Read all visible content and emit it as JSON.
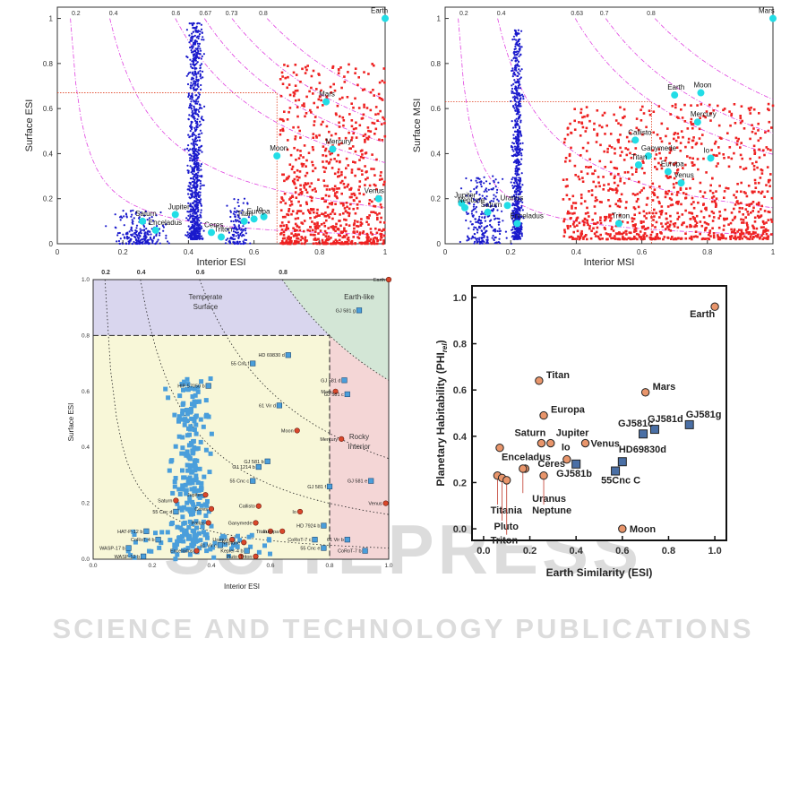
{
  "watermark": {
    "line1": "SCITEPRESS",
    "line2": "SCIENCE AND TECHNOLOGY PUBLICATIONS"
  },
  "chart_data": [
    {
      "id": "p1",
      "type": "scatter",
      "xlabel": "Interior ESI",
      "ylabel": "Surface ESI",
      "xlim": [
        0,
        1
      ],
      "ylim": [
        0,
        1.05
      ],
      "xticks": [
        "0",
        "0.2",
        "0.4",
        "0.6",
        "0.8",
        "1"
      ],
      "yticks": [
        "0",
        "0.2",
        "0.4",
        "0.6",
        "0.8",
        "1"
      ],
      "curve_labels": [
        "0.2",
        "0.4",
        "0.6",
        "0.67",
        "0.73",
        "0.8"
      ],
      "colors": {
        "blue": "#1a1acc",
        "red": "#ee2222",
        "cyan": "#22dde6",
        "curve": "#e040e0"
      },
      "points": [
        {
          "name": "Earth",
          "x": 1.0,
          "y": 1.0
        },
        {
          "name": "Mars",
          "x": 0.82,
          "y": 0.63
        },
        {
          "name": "Mercury",
          "x": 0.84,
          "y": 0.42
        },
        {
          "name": "Moon",
          "x": 0.67,
          "y": 0.39
        },
        {
          "name": "Venus",
          "x": 0.98,
          "y": 0.2
        },
        {
          "name": "Io",
          "x": 0.63,
          "y": 0.12
        },
        {
          "name": "Europa",
          "x": 0.6,
          "y": 0.11
        },
        {
          "name": "Titan",
          "x": 0.57,
          "y": 0.1
        },
        {
          "name": "Jupiter",
          "x": 0.36,
          "y": 0.13
        },
        {
          "name": "Saturn",
          "x": 0.26,
          "y": 0.1
        },
        {
          "name": "Enceladus",
          "x": 0.3,
          "y": 0.06
        },
        {
          "name": "Triton",
          "x": 0.5,
          "y": 0.03
        },
        {
          "name": "Ceres",
          "x": 0.47,
          "y": 0.05
        }
      ]
    },
    {
      "id": "p2",
      "type": "scatter",
      "xlabel": "Interior MSI",
      "ylabel": "Surface MSI",
      "xlim": [
        0,
        1
      ],
      "ylim": [
        0,
        1.05
      ],
      "xticks": [
        "0",
        "0.2",
        "0.4",
        "0.6",
        "0.8",
        "1"
      ],
      "yticks": [
        "0",
        "0.2",
        "0.4",
        "0.6",
        "0.8",
        "1"
      ],
      "curve_labels": [
        "0.2",
        "0.4",
        "0.63",
        "0.7",
        "0.8"
      ],
      "colors": {
        "blue": "#1a1acc",
        "red": "#ee2222",
        "cyan": "#22dde6",
        "curve": "#e040e0"
      },
      "points": [
        {
          "name": "Mars",
          "x": 1.0,
          "y": 1.0
        },
        {
          "name": "Earth",
          "x": 0.7,
          "y": 0.66
        },
        {
          "name": "Moon",
          "x": 0.78,
          "y": 0.67
        },
        {
          "name": "Mercury",
          "x": 0.77,
          "y": 0.54
        },
        {
          "name": "Callisto",
          "x": 0.58,
          "y": 0.46
        },
        {
          "name": "Ganymede",
          "x": 0.62,
          "y": 0.39
        },
        {
          "name": "Io",
          "x": 0.81,
          "y": 0.38
        },
        {
          "name": "Titan",
          "x": 0.59,
          "y": 0.35
        },
        {
          "name": "Europa",
          "x": 0.68,
          "y": 0.32
        },
        {
          "name": "Venus",
          "x": 0.72,
          "y": 0.27
        },
        {
          "name": "Jupiter",
          "x": 0.05,
          "y": 0.18
        },
        {
          "name": "Saturn",
          "x": 0.13,
          "y": 0.14
        },
        {
          "name": "Neptune",
          "x": 0.06,
          "y": 0.16
        },
        {
          "name": "Uranus",
          "x": 0.19,
          "y": 0.17
        },
        {
          "name": "Enceladus",
          "x": 0.22,
          "y": 0.09
        },
        {
          "name": "Triton",
          "x": 0.53,
          "y": 0.09
        }
      ]
    },
    {
      "id": "p3",
      "type": "scatter",
      "xlabel": "Interior ESI",
      "ylabel": "Surface ESI",
      "xlim": [
        0,
        1
      ],
      "ylim": [
        0,
        1
      ],
      "xticks": [
        "0.0",
        "0.2",
        "0.4",
        "0.6",
        "0.8",
        "1.0"
      ],
      "yticks": [
        "0.0",
        "0.2",
        "0.4",
        "0.6",
        "0.8",
        "1.0"
      ],
      "curve_labels": [
        "0.2",
        "0.4",
        "0.6",
        "0.8"
      ],
      "regions": [
        "Temperate Surface",
        "Earth-like",
        "Rocky Interior"
      ],
      "colors": {
        "blue": "#4a9edb",
        "planet": "#d9472b",
        "temperate": "#d9d6ee",
        "earthlike": "#d3e6d6",
        "rocky": "#f4d6d6",
        "inner": "#f8f7d8"
      },
      "labeled_points": [
        {
          "name": "Earth",
          "x": 1.0,
          "y": 1.0,
          "kind": "planet"
        },
        {
          "name": "GJ 581 g",
          "x": 0.9,
          "y": 0.89,
          "kind": "exo"
        },
        {
          "name": "HD 69830 d",
          "x": 0.66,
          "y": 0.73,
          "kind": "exo"
        },
        {
          "name": "55 Cnc f",
          "x": 0.54,
          "y": 0.7,
          "kind": "exo"
        },
        {
          "name": "HIP 57050 b",
          "x": 0.39,
          "y": 0.62,
          "kind": "exo"
        },
        {
          "name": "GJ 581 d",
          "x": 0.85,
          "y": 0.64,
          "kind": "exo"
        },
        {
          "name": "Mars",
          "x": 0.82,
          "y": 0.6,
          "kind": "planet"
        },
        {
          "name": "GJ 581 c",
          "x": 0.86,
          "y": 0.59,
          "kind": "exo"
        },
        {
          "name": "61 Vir d",
          "x": 0.63,
          "y": 0.55,
          "kind": "exo"
        },
        {
          "name": "Moon",
          "x": 0.69,
          "y": 0.46,
          "kind": "planet"
        },
        {
          "name": "Mercury",
          "x": 0.84,
          "y": 0.43,
          "kind": "planet"
        },
        {
          "name": "GJ 581 b",
          "x": 0.59,
          "y": 0.35,
          "kind": "exo"
        },
        {
          "name": "GJ 1214 b",
          "x": 0.56,
          "y": 0.33,
          "kind": "exo"
        },
        {
          "name": "55 Cnc c",
          "x": 0.54,
          "y": 0.28,
          "kind": "exo"
        },
        {
          "name": "GJ 581 e",
          "x": 0.94,
          "y": 0.28,
          "kind": "exo"
        },
        {
          "name": "GJ 581 f",
          "x": 0.8,
          "y": 0.26,
          "kind": "exo"
        },
        {
          "name": "Jupiter",
          "x": 0.38,
          "y": 0.23,
          "kind": "planet"
        },
        {
          "name": "Saturn",
          "x": 0.28,
          "y": 0.21,
          "kind": "planet"
        },
        {
          "name": "Venus",
          "x": 0.99,
          "y": 0.2,
          "kind": "planet"
        },
        {
          "name": "Callisto",
          "x": 0.56,
          "y": 0.19,
          "kind": "planet"
        },
        {
          "name": "Ceres",
          "x": 0.4,
          "y": 0.18,
          "kind": "planet"
        },
        {
          "name": "55 Cnc d",
          "x": 0.28,
          "y": 0.17,
          "kind": "exo"
        },
        {
          "name": "Io",
          "x": 0.7,
          "y": 0.17,
          "kind": "planet"
        },
        {
          "name": "Pallas",
          "x": 0.39,
          "y": 0.13,
          "kind": "planet"
        },
        {
          "name": "Ganymede",
          "x": 0.55,
          "y": 0.13,
          "kind": "planet"
        },
        {
          "name": "HD 7924 b",
          "x": 0.78,
          "y": 0.12,
          "kind": "exo"
        },
        {
          "name": "HAT-P-12 b",
          "x": 0.18,
          "y": 0.1,
          "kind": "exo"
        },
        {
          "name": "Titan",
          "x": 0.6,
          "y": 0.1,
          "kind": "planet"
        },
        {
          "name": "Europa",
          "x": 0.64,
          "y": 0.1,
          "kind": "planet"
        },
        {
          "name": "CoRoT-4 b",
          "x": 0.22,
          "y": 0.07,
          "kind": "exo"
        },
        {
          "name": "Uranus",
          "x": 0.47,
          "y": 0.07,
          "kind": "planet"
        },
        {
          "name": "CoRoT-7 c",
          "x": 0.75,
          "y": 0.07,
          "kind": "exo"
        },
        {
          "name": "61 Vir b",
          "x": 0.86,
          "y": 0.07,
          "kind": "exo"
        },
        {
          "name": "Neptune",
          "x": 0.51,
          "y": 0.06,
          "kind": "planet"
        },
        {
          "name": "WASP-17 b",
          "x": 0.12,
          "y": 0.04,
          "kind": "exo"
        },
        {
          "name": "61 Vir c",
          "x": 0.43,
          "y": 0.05,
          "kind": "exo"
        },
        {
          "name": "55 Cnc e",
          "x": 0.78,
          "y": 0.04,
          "kind": "exo"
        },
        {
          "name": "Enceladus",
          "x": 0.35,
          "y": 0.03,
          "kind": "planet"
        },
        {
          "name": "Kepler-4 b",
          "x": 0.52,
          "y": 0.03,
          "kind": "exo"
        },
        {
          "name": "CoRoT-7 b",
          "x": 0.92,
          "y": 0.03,
          "kind": "exo"
        },
        {
          "name": "WASP-12 b",
          "x": 0.17,
          "y": 0.01,
          "kind": "exo"
        },
        {
          "name": "Pluto",
          "x": 0.5,
          "y": 0.01,
          "kind": "planet"
        },
        {
          "name": "Triton",
          "x": 0.55,
          "y": 0.01,
          "kind": "planet"
        }
      ]
    },
    {
      "id": "p4",
      "type": "scatter",
      "xlabel": "Earth Similarity (ESI)",
      "ylabel": "Planetary Habitability (PHI",
      "ylabel_sub": "rel",
      "ylabel_end": ")",
      "xlim": [
        0,
        1
      ],
      "ylim": [
        0,
        1
      ],
      "xticks": [
        "0.0",
        "0.2",
        "0.4",
        "0.6",
        "0.8",
        "1.0"
      ],
      "yticks": [
        "0.0",
        "0.2",
        "0.4",
        "0.6",
        "0.8",
        "1.0"
      ],
      "colors": {
        "planet": "#e8956b",
        "exo": "#4a6fa5"
      },
      "points": [
        {
          "name": "Earth",
          "x": 1.0,
          "y": 0.96,
          "kind": "planet"
        },
        {
          "name": "Titan",
          "x": 0.24,
          "y": 0.64,
          "kind": "planet"
        },
        {
          "name": "Mars",
          "x": 0.7,
          "y": 0.59,
          "kind": "planet"
        },
        {
          "name": "Europa",
          "x": 0.26,
          "y": 0.49,
          "kind": "planet"
        },
        {
          "name": "GJ581g",
          "x": 0.89,
          "y": 0.45,
          "kind": "exo"
        },
        {
          "name": "GJ581d",
          "x": 0.74,
          "y": 0.43,
          "kind": "exo"
        },
        {
          "name": "GJ581c",
          "x": 0.69,
          "y": 0.41,
          "kind": "exo"
        },
        {
          "name": "Saturn",
          "x": 0.25,
          "y": 0.37,
          "kind": "planet"
        },
        {
          "name": "Jupiter",
          "x": 0.29,
          "y": 0.37,
          "kind": "planet"
        },
        {
          "name": "Venus",
          "x": 0.44,
          "y": 0.37,
          "kind": "planet"
        },
        {
          "name": "Enceladus",
          "x": 0.07,
          "y": 0.35,
          "kind": "planet"
        },
        {
          "name": "Io",
          "x": 0.36,
          "y": 0.3,
          "kind": "planet"
        },
        {
          "name": "HD69830d",
          "x": 0.6,
          "y": 0.29,
          "kind": "exo"
        },
        {
          "name": "GJ581b",
          "x": 0.4,
          "y": 0.28,
          "kind": "exo"
        },
        {
          "name": "Ceres",
          "x": 0.18,
          "y": 0.26,
          "kind": "planet"
        },
        {
          "name": "Uranus",
          "x": 0.17,
          "y": 0.26,
          "kind": "planet"
        },
        {
          "name": "55Cnc C",
          "x": 0.57,
          "y": 0.25,
          "kind": "exo"
        },
        {
          "name": "Neptune",
          "x": 0.26,
          "y": 0.23,
          "kind": "planet"
        },
        {
          "name": "Titania",
          "x": 0.06,
          "y": 0.23,
          "kind": "planet"
        },
        {
          "name": "Pluto",
          "x": 0.08,
          "y": 0.22,
          "kind": "planet"
        },
        {
          "name": "Triton",
          "x": 0.1,
          "y": 0.21,
          "kind": "planet"
        },
        {
          "name": "Moon",
          "x": 0.6,
          "y": 0.0,
          "kind": "planet"
        }
      ]
    }
  ]
}
